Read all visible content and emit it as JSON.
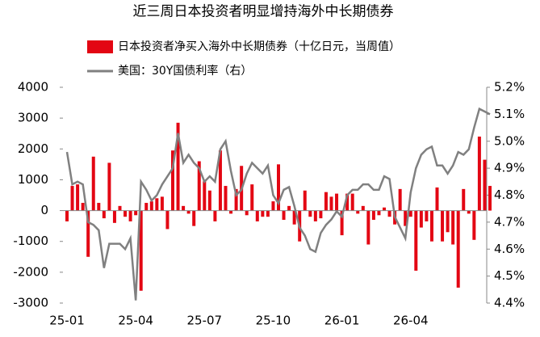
{
  "chart_data": {
    "type": "bar",
    "title": "近三周日本投资者明显增持海外中长期债券",
    "categories": [
      "25-01",
      null,
      null,
      null,
      null,
      null,
      null,
      null,
      null,
      null,
      null,
      null,
      null,
      "25-04",
      null,
      null,
      null,
      null,
      null,
      null,
      null,
      null,
      null,
      null,
      null,
      null,
      "25-07",
      null,
      null,
      null,
      null,
      null,
      null,
      null,
      null,
      null,
      null,
      null,
      null,
      "25-10",
      null,
      null,
      null,
      null,
      null,
      null,
      null,
      null,
      null,
      null,
      null,
      null,
      "26-01",
      null,
      null,
      null,
      null,
      null,
      null,
      null,
      null,
      null,
      null,
      null,
      null,
      "26-04",
      null,
      null,
      null,
      null,
      null,
      null,
      null,
      null,
      null,
      null,
      null,
      null,
      null,
      null,
      null
    ],
    "series": [
      {
        "name": "日本投资者净买入海外中长期债券（十亿日元，当周值）",
        "type": "bar",
        "color": "#e30613",
        "values": [
          -350,
          800,
          850,
          250,
          -1500,
          1750,
          250,
          -250,
          1550,
          -400,
          150,
          -200,
          -350,
          -150,
          -2600,
          250,
          300,
          400,
          450,
          -600,
          1950,
          2850,
          150,
          -100,
          -500,
          1600,
          950,
          650,
          -350,
          1950,
          800,
          -100,
          700,
          1450,
          -150,
          850,
          -350,
          -200,
          -200,
          300,
          1500,
          -300,
          150,
          -450,
          -1000,
          650,
          -200,
          -350,
          -250,
          600,
          450,
          550,
          -800,
          550,
          550,
          -100,
          150,
          -1100,
          -300,
          -150,
          100,
          -200,
          -450,
          700,
          -500,
          -200,
          -1950,
          -550,
          -350,
          -1000,
          750,
          -1000,
          -700,
          -1100,
          -2500,
          700,
          -100,
          -950,
          2400,
          1650,
          800
        ]
      },
      {
        "name": "美国：30Y国债利率（右）",
        "type": "line",
        "axis": "y2",
        "color": "#808080",
        "values": [
          4.96,
          4.84,
          4.85,
          4.84,
          4.7,
          4.69,
          4.67,
          4.53,
          4.62,
          4.62,
          4.62,
          4.6,
          4.64,
          4.41,
          4.85,
          4.82,
          4.78,
          4.8,
          4.84,
          4.87,
          4.9,
          5.03,
          4.92,
          4.95,
          4.92,
          4.9,
          4.85,
          4.87,
          4.85,
          4.97,
          5.0,
          4.89,
          4.8,
          4.82,
          4.88,
          4.92,
          4.9,
          4.88,
          4.91,
          4.8,
          4.77,
          4.82,
          4.83,
          4.76,
          4.68,
          4.65,
          4.6,
          4.59,
          4.66,
          4.69,
          4.71,
          4.74,
          4.72,
          4.8,
          4.82,
          4.82,
          4.84,
          4.84,
          4.82,
          4.82,
          4.87,
          4.86,
          4.72,
          4.68,
          4.64,
          4.81,
          4.9,
          4.95,
          4.97,
          4.98,
          4.91,
          4.91,
          4.88,
          4.91,
          4.96,
          4.95,
          4.97,
          5.05,
          5.12,
          5.11,
          5.1
        ]
      }
    ],
    "ylim": [
      -3000,
      4000
    ],
    "yticks": [
      -3000,
      -2000,
      -1000,
      0,
      1000,
      2000,
      3000,
      4000
    ],
    "y2lim": [
      4.4,
      5.2
    ],
    "y2ticks": [
      {
        "value": 4.4,
        "label": "4.4%"
      },
      {
        "value": 4.5,
        "label": "4.5%"
      },
      {
        "value": 4.6,
        "label": "4.6%"
      },
      {
        "value": 4.7,
        "label": "4.7%"
      },
      {
        "value": 4.8,
        "label": "4.8%"
      },
      {
        "value": 4.9,
        "label": "4.9%"
      },
      {
        "value": 5.0,
        "label": "5.0%"
      },
      {
        "value": 5.1,
        "label": "5.1%"
      },
      {
        "value": 5.2,
        "label": "5.2%"
      }
    ],
    "legend": "top"
  }
}
